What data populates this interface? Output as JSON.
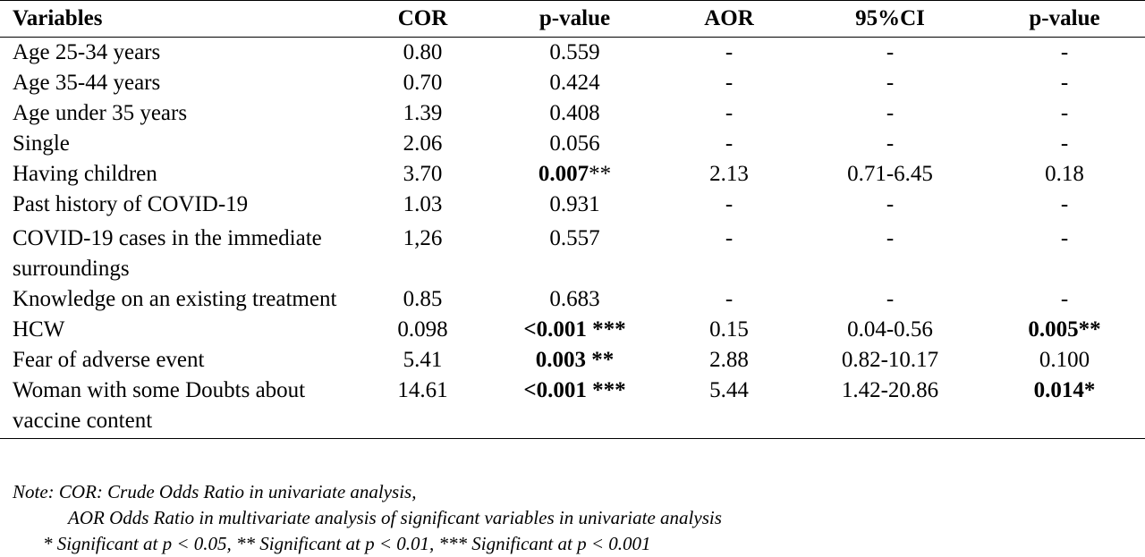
{
  "headers": {
    "variables": "Variables",
    "cor": "COR",
    "p1": "p-value",
    "aor": "AOR",
    "ci": "95%CI",
    "p2": "p-value"
  },
  "rows": [
    {
      "variable": "Age 25-34 years",
      "cor": "0.80",
      "p1": "0.559",
      "aor": "-",
      "ci": "-",
      "p2": "-"
    },
    {
      "variable": "Age 35-44 years",
      "cor": "0.70",
      "p1": "0.424",
      "aor": "-",
      "ci": "-",
      "p2": "-"
    },
    {
      "variable": "Age under 35 years",
      "cor": "1.39",
      "p1": "0.408",
      "aor": "-",
      "ci": "-",
      "p2": "-"
    },
    {
      "variable": "Single",
      "cor": "2.06",
      "p1": "0.056",
      "aor": "-",
      "ci": "-",
      "p2": "-"
    },
    {
      "variable": "Having children",
      "cor": "3.70",
      "p1_bold": "0.007",
      "p1_stars": "**",
      "aor": "2.13",
      "ci": "0.71-6.45",
      "p2": "0.18"
    },
    {
      "variable": "Past history of COVID-19",
      "cor": "1.03",
      "p1": "0.931",
      "aor": "-",
      "ci": "-",
      "p2": "-"
    },
    {
      "variable": "COVID-19 cases in the immediate surroundings",
      "cor": "1,26",
      "p1": "0.557",
      "aor": "-",
      "ci": "-",
      "p2": "-"
    },
    {
      "variable": "Knowledge on an existing treatment",
      "cor": "0.85",
      "p1": "0.683",
      "aor": "-",
      "ci": "-",
      "p2": "-"
    },
    {
      "variable": "HCW",
      "cor": "0.098",
      "p1_bold": "<0.001 ***",
      "aor": "0.15",
      "ci": "0.04-0.56",
      "p2_bold": "0.005**"
    },
    {
      "variable": "Fear of adverse event",
      "cor": "5.41",
      "p1_bold": "0.003 **",
      "aor": "2.88",
      "ci": "0.82-10.17",
      "p2": "0.100"
    },
    {
      "variable": "Woman with some Doubts about vaccine content",
      "cor": "14.61",
      "p1_bold": "<0.001 ***",
      "aor": "5.44",
      "ci": "1.42-20.86",
      "p2_bold": "0.014*"
    }
  ],
  "note": {
    "line1": "Note: COR: Crude Odds Ratio in univariate analysis,",
    "line2": "AOR Odds Ratio in multivariate analysis of significant variables in univariate analysis",
    "line3": "* Significant at p < 0.05, ** Significant at p < 0.01, *** Significant at p < 0.001"
  }
}
